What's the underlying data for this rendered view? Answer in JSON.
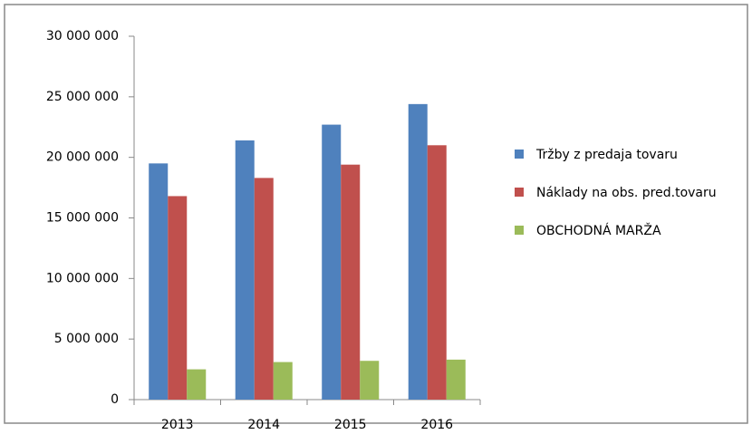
{
  "chart_data": {
    "type": "bar",
    "categories": [
      "2013",
      "2014",
      "2015",
      "2016"
    ],
    "series": [
      {
        "name": "Tržby z predaja tovaru",
        "color": "#4f81bd",
        "values": [
          19500000,
          21400000,
          22700000,
          24400000
        ]
      },
      {
        "name": "Náklady na obs. pred.tovaru",
        "color": "#c0504d",
        "values": [
          16800000,
          18300000,
          19400000,
          21000000
        ]
      },
      {
        "name": "OBCHODNÁ MARŽA",
        "color": "#9bbb59",
        "values": [
          2500000,
          3100000,
          3200000,
          3300000
        ]
      }
    ],
    "ylim": [
      0,
      30000000
    ],
    "yticks": [
      0,
      {
        "value": 5000000,
        "label": "5 000 000"
      },
      {
        "value": 10000000,
        "label": "10 000 000"
      },
      {
        "value": 15000000,
        "label": "15 000 000"
      },
      {
        "value": 20000000,
        "label": "20 000 000"
      },
      {
        "value": 25000000,
        "label": "25 000 000"
      },
      {
        "value": 30000000,
        "label": "30 000 000"
      }
    ],
    "grid": false,
    "legend": "right"
  }
}
